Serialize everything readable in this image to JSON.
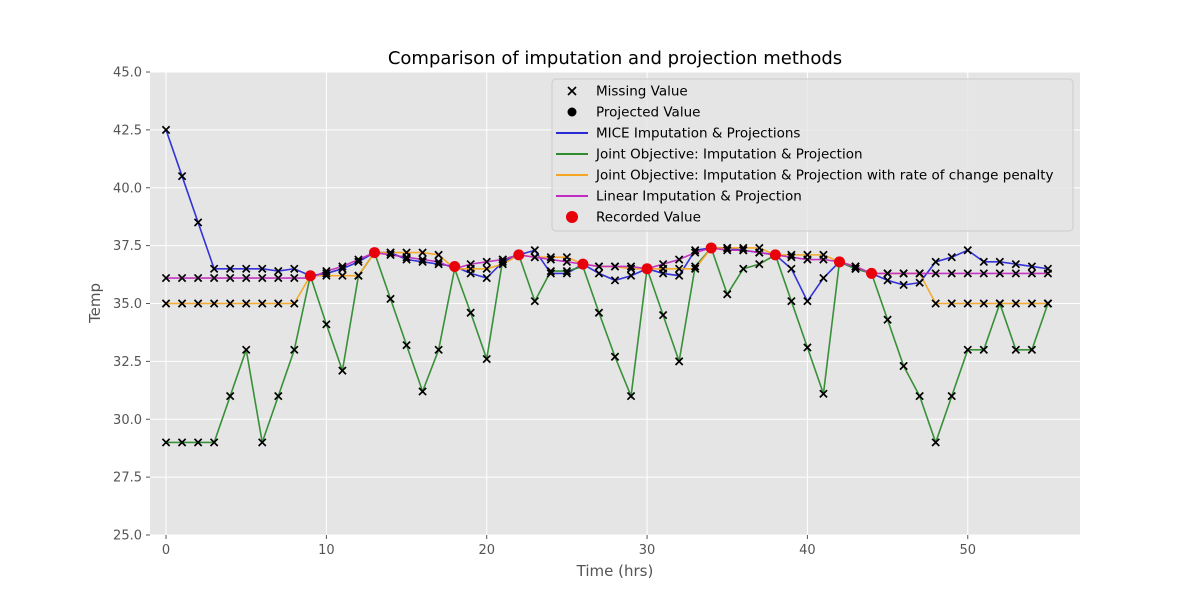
{
  "chart_data": {
    "type": "line",
    "title": "Comparison of imputation and projection methods",
    "xlabel": "Time (hrs)",
    "ylabel": "Temp",
    "xlim": [
      -1,
      57
    ],
    "ylim": [
      25.0,
      45.0
    ],
    "xticks": [
      0,
      10,
      20,
      30,
      40,
      50
    ],
    "yticks": [
      25.0,
      27.5,
      30.0,
      32.5,
      35.0,
      37.5,
      40.0,
      42.5,
      45.0
    ],
    "xtick_labels": [
      "0",
      "10",
      "20",
      "30",
      "40",
      "50"
    ],
    "ytick_labels": [
      "25.0",
      "27.5",
      "30.0",
      "32.5",
      "35.0",
      "37.5",
      "40.0",
      "42.5",
      "45.0"
    ],
    "grid": true,
    "legend_position": "top-right",
    "legend": [
      {
        "label": "Missing Value",
        "kind": "x-marker"
      },
      {
        "label": "Projected Value",
        "kind": "dot-marker"
      },
      {
        "label": "MICE Imputation & Projections",
        "kind": "line",
        "color": "#2929d6"
      },
      {
        "label": "Joint Objective: Imputation & Projection",
        "kind": "line",
        "color": "#2e8b2e"
      },
      {
        "label": "Joint Objective: Imputation & Projection with rate of change penalty",
        "kind": "line",
        "color": "#f5a623"
      },
      {
        "label": "Linear Imputation & Projection",
        "kind": "line",
        "color": "#c02cc0"
      },
      {
        "label": "Recorded Value",
        "kind": "red-dot",
        "color": "#e8000b"
      }
    ],
    "x": [
      0,
      1,
      2,
      3,
      4,
      5,
      6,
      7,
      8,
      9,
      10,
      11,
      12,
      13,
      14,
      15,
      16,
      17,
      18,
      19,
      20,
      21,
      22,
      23,
      24,
      25,
      26,
      27,
      28,
      29,
      30,
      31,
      32,
      33,
      34,
      35,
      36,
      37,
      38,
      39,
      40,
      41,
      42,
      43,
      44,
      45,
      46,
      47,
      48,
      49,
      50,
      51,
      52,
      53,
      54,
      55
    ],
    "recorded_indices": [
      9,
      13,
      18,
      22,
      26,
      30,
      34,
      38,
      42,
      44
    ],
    "series": [
      {
        "name": "MICE Imputation & Projections",
        "color": "#2929d6",
        "values": [
          42.5,
          40.5,
          38.5,
          36.5,
          36.5,
          36.5,
          36.5,
          36.4,
          36.5,
          36.2,
          36.3,
          36.5,
          36.8,
          37.2,
          37.2,
          36.9,
          36.8,
          36.7,
          36.6,
          36.3,
          36.1,
          36.8,
          37.1,
          37.3,
          36.3,
          36.3,
          36.7,
          36.3,
          36.0,
          36.2,
          36.5,
          36.3,
          36.2,
          37.3,
          37.4,
          37.4,
          37.3,
          37.2,
          37.1,
          36.5,
          35.1,
          36.1,
          36.8,
          36.5,
          36.3,
          36.0,
          35.8,
          35.9,
          36.8,
          37.0,
          37.3,
          36.8,
          36.8,
          36.7,
          36.6,
          36.5
        ]
      },
      {
        "name": "Joint Objective: Imputation & Projection",
        "color": "#2e8b2e",
        "values": [
          29.0,
          29.0,
          29.0,
          29.0,
          31.0,
          33.0,
          29.0,
          31.0,
          33.0,
          36.2,
          34.1,
          32.1,
          36.2,
          37.2,
          35.2,
          33.2,
          31.2,
          33.0,
          36.5,
          34.6,
          32.6,
          36.9,
          37.1,
          35.1,
          36.4,
          36.4,
          36.6,
          34.6,
          32.7,
          31.0,
          36.5,
          34.5,
          32.5,
          36.6,
          37.4,
          35.4,
          36.5,
          36.7,
          37.1,
          35.1,
          33.1,
          31.1,
          36.8,
          36.5,
          36.3,
          34.3,
          32.3,
          31.0,
          29.0,
          31.0,
          33.0,
          33.0,
          35.0,
          33.0,
          33.0,
          35.0
        ]
      },
      {
        "name": "Joint Objective: Imputation & Projection with rate of change penalty",
        "color": "#f5a623",
        "values": [
          35.0,
          35.0,
          35.0,
          35.0,
          35.0,
          35.0,
          35.0,
          35.0,
          35.0,
          36.2,
          36.2,
          36.2,
          36.2,
          37.2,
          37.2,
          37.2,
          37.2,
          37.1,
          36.5,
          36.5,
          36.5,
          36.7,
          37.1,
          37.0,
          37.0,
          37.0,
          36.7,
          36.6,
          36.6,
          36.5,
          36.5,
          36.5,
          36.5,
          36.5,
          37.4,
          37.4,
          37.4,
          37.4,
          37.1,
          37.1,
          37.1,
          37.1,
          36.8,
          36.6,
          36.3,
          36.3,
          36.3,
          36.3,
          35.0,
          35.0,
          35.0,
          35.0,
          35.0,
          35.0,
          35.0,
          35.0
        ]
      },
      {
        "name": "Linear Imputation & Projection",
        "color": "#c02cc0",
        "values": [
          36.1,
          36.1,
          36.1,
          36.1,
          36.1,
          36.1,
          36.1,
          36.1,
          36.1,
          36.1,
          36.4,
          36.6,
          36.9,
          37.2,
          37.1,
          37.0,
          36.9,
          36.8,
          36.5,
          36.7,
          36.8,
          36.9,
          37.1,
          37.0,
          36.9,
          36.8,
          36.7,
          36.6,
          36.6,
          36.6,
          36.5,
          36.7,
          36.9,
          37.2,
          37.4,
          37.3,
          37.3,
          37.2,
          37.1,
          37.0,
          36.9,
          36.9,
          36.8,
          36.6,
          36.3,
          36.3,
          36.3,
          36.3,
          36.3,
          36.3,
          36.3,
          36.3,
          36.3,
          36.3,
          36.3,
          36.3
        ]
      }
    ]
  }
}
